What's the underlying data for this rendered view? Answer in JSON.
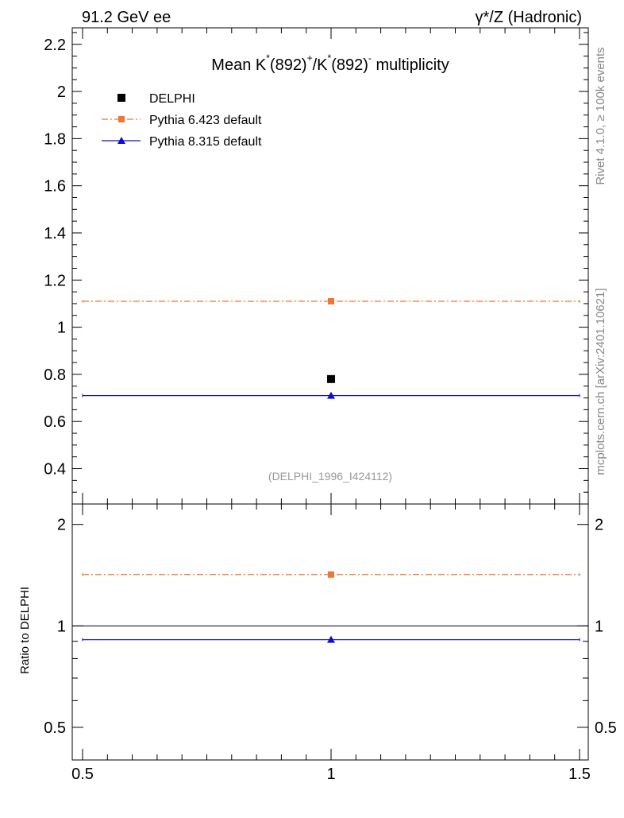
{
  "header": {
    "left_label": "91.2 GeV ee",
    "right_label": "γ*/Z (Hadronic)"
  },
  "side_labels": {
    "rivet": "Rivet 4.1.0, ≥ 100k events",
    "mcplots": "mcplots.cern.ch [arXiv:2401.10621]"
  },
  "colors": {
    "data": "#000000",
    "pythia6": "#ee7733",
    "pythia8": "#1010cc",
    "reference_line": "#000000",
    "watermark": "#999999"
  },
  "chart_data": [
    {
      "type": "scatter",
      "panel": "main",
      "title": {
        "prefix": "Mean K",
        "sup1": "*",
        "mid1": "(892)",
        "sup2": "+",
        "mid2": "/K",
        "sup3": "*",
        "mid3": "(892)",
        "sup4": "-",
        "suffix": " multiplicity"
      },
      "watermark": "(DELPHI_1996_I424112)",
      "xlim": [
        0.5,
        1.5
      ],
      "ylim": [
        0.25,
        2.27
      ],
      "ytick_values": [
        0.4,
        0.6,
        0.8,
        1.0,
        1.2,
        1.4,
        1.6,
        1.8,
        2.0,
        2.2
      ],
      "ytick_labels": [
        "0.4",
        "0.6",
        "0.8",
        "1",
        "1.2",
        "1.4",
        "1.6",
        "1.8",
        "2",
        "2.2"
      ],
      "legend": [
        "DELPHI",
        "Pythia 6.423 default",
        "Pythia 8.315 default"
      ],
      "legend_position": "top-left",
      "series": [
        {
          "name": "DELPHI",
          "key": "data",
          "x": 1.0,
          "y": 0.78,
          "xlow": 1.0,
          "xhigh": 1.0
        },
        {
          "name": "Pythia 6.423 default",
          "key": "pythia6",
          "x": 1.0,
          "y": 1.11,
          "xlow": 0.5,
          "xhigh": 1.5
        },
        {
          "name": "Pythia 8.315 default",
          "key": "pythia8",
          "x": 1.0,
          "y": 0.71,
          "xlow": 0.5,
          "xhigh": 1.5
        }
      ]
    },
    {
      "type": "scatter",
      "panel": "ratio",
      "ylabel": "Ratio to DELPHI",
      "xlim": [
        0.5,
        1.5
      ],
      "ylim": [
        0.4,
        2.3
      ],
      "yscale": "log",
      "ytick_values": [
        0.5,
        1.0,
        2.0
      ],
      "ytick_labels": [
        "0.5",
        "1",
        "2"
      ],
      "xtick_values": [
        0.5,
        1.0,
        1.5
      ],
      "xtick_labels": [
        "0.5",
        "1",
        "1.5"
      ],
      "reference": 1.0,
      "series": [
        {
          "name": "Pythia 6.423 default",
          "key": "pythia6",
          "x": 1.0,
          "y": 1.42,
          "xlow": 0.5,
          "xhigh": 1.5
        },
        {
          "name": "Pythia 8.315 default",
          "key": "pythia8",
          "x": 1.0,
          "y": 0.91,
          "xlow": 0.5,
          "xhigh": 1.5
        }
      ]
    }
  ]
}
